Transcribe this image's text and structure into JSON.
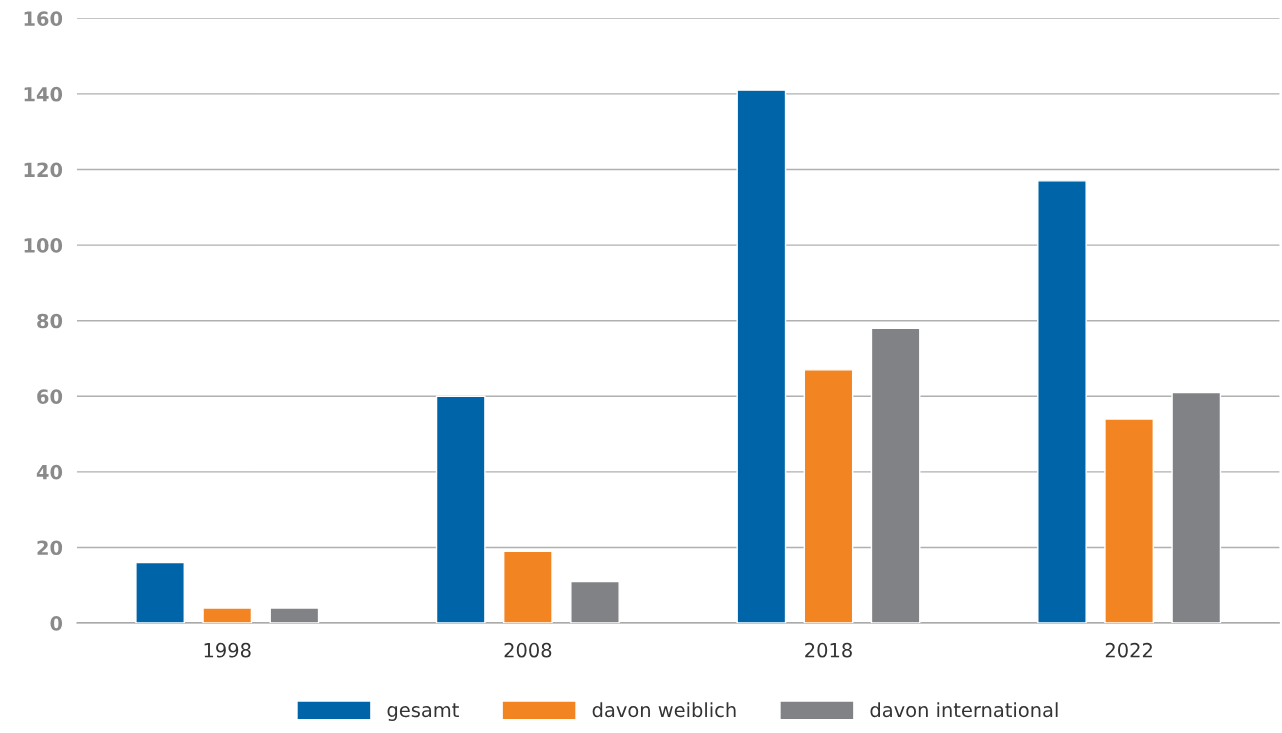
{
  "chart_data": {
    "type": "bar",
    "categories": [
      "1998",
      "2008",
      "2018",
      "2022"
    ],
    "series": [
      {
        "name": "gesamt",
        "color": "#0064a8",
        "values": [
          16,
          60,
          141,
          117
        ]
      },
      {
        "name": "davon weiblich",
        "color": "#f28522",
        "values": [
          4,
          19,
          67,
          54
        ]
      },
      {
        "name": "davon international",
        "color": "#808285",
        "values": [
          4,
          11,
          78,
          61
        ]
      }
    ],
    "ylim": [
      0,
      160
    ],
    "yticks": [
      0,
      20,
      40,
      60,
      80,
      100,
      120,
      140,
      160
    ],
    "grid": "y",
    "legend": "bottom"
  }
}
